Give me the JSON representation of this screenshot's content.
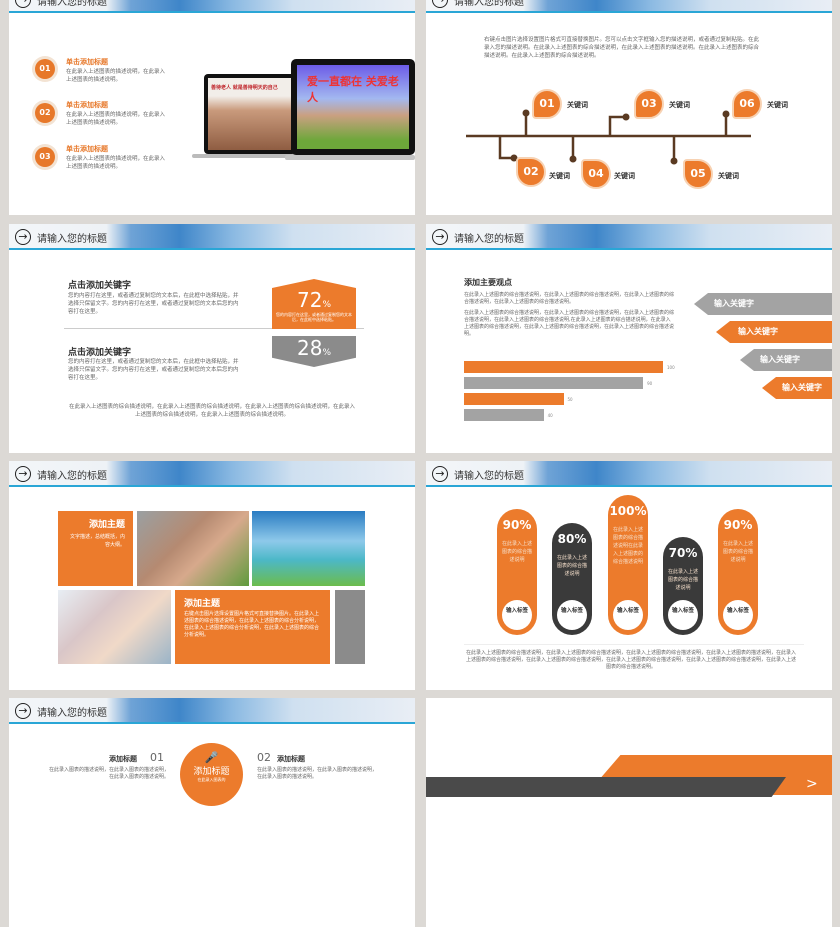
{
  "header_title": "请输入您的标题",
  "slide1": {
    "items": [
      {
        "num": "01",
        "title": "单击添加标题",
        "text": "在此录入上述图表的描述说明，在此录入上述图表的描述说明。"
      },
      {
        "num": "02",
        "title": "单击添加标题",
        "text": "在此录入上述图表的描述说明，在此录入上述图表的描述说明。"
      },
      {
        "num": "03",
        "title": "单击添加标题",
        "text": "在此录入上述图表的描述说明，在此录入上述图表的描述说明。"
      }
    ],
    "screen1": "善待老人 就是善待明天的自己",
    "screen2": "爱一直都在 关爱老人"
  },
  "slide2": {
    "paragraph": "右键点击图片选择设置图片格式可直接替换图片。您可以点击文字框输入您的描述说明，或者通过复制粘贴。在此录入您的描述说明。在此录入上述图表的综合描述说明，在此录入上述图表的描述说明。在此录入上述图表的综合描述说明。在此录入上述图表的综合描述说明。",
    "nodes": [
      {
        "num": "01",
        "label": "关键词"
      },
      {
        "num": "02",
        "label": "关键词"
      },
      {
        "num": "03",
        "label": "关键词"
      },
      {
        "num": "04",
        "label": "关键词"
      },
      {
        "num": "05",
        "label": "关键词"
      },
      {
        "num": "06",
        "label": "关键词"
      }
    ],
    "colors": {
      "accent": "#ec7b2c",
      "line": "#5a3a22"
    }
  },
  "slide3": {
    "blocks": [
      {
        "title": "点击添加关键字",
        "text": "您的内容打在这里，或者通过复制您的文本后，在此框中选择粘贴，并选择只保留文字。您的内容打在这里，或者通过复制您的文本后您的内容打在这里。"
      },
      {
        "title": "点击添加关键字",
        "text": "您的内容打在这里，或者通过复制您的文本后，在此框中选择粘贴，并选择只保留文字。您的内容打在这里，或者通过复制您的文本后您的内容打在这里。"
      }
    ],
    "stat1": {
      "value": "72",
      "unit": "%",
      "text": "您的内容打在这里，或者通过复制您的文本后，在此框中选择粘贴。"
    },
    "stat2": {
      "value": "28",
      "unit": "%"
    },
    "footer": "在此录入上述图表的综合描述说明，在此录入上述图表的综合描述说明，在此录入上述图表的综合描述说明，在此录入上述图表的综合描述说明，在此录入上述图表的综合描述说明。"
  },
  "slide4": {
    "title": "添加主要观点",
    "para1": "在此录入上述图表的综合描述说明，在此录入上述图表的综合描述说明，在此录入上述图表的综合描述说明，在此录入上述图表的综合描述说明。",
    "para2": "在此录入上述图表的综合描述说明，在此录入上述图表的综合描述说明，在此录入上述图表的综合描述说明，在此录入上述图表的综合描述说明,在此录入上述图表的综合描述说明，在此录入上述图表的综合描述说明，在此录入上述图表的综合描述说明，在此录入上述图表的综合描述说明。",
    "bars": [
      {
        "value": 100,
        "label": "100",
        "color": "#ec7b2c"
      },
      {
        "value": 90,
        "label": "90",
        "color": "#a3a3a3"
      },
      {
        "value": 50,
        "label": "50",
        "color": "#ec7b2c"
      },
      {
        "value": 40,
        "label": "40",
        "color": "#a3a3a3"
      }
    ],
    "keywords": [
      "输入关键字",
      "输入关键字",
      "输入关键字",
      "输入关键字"
    ]
  },
  "slide5": {
    "box1": {
      "title": "添加主题",
      "text": "文字描述，总结概括，内容大纲。"
    },
    "box2": {
      "title": "添加主题",
      "text": "右键点击图片选择设置图片格式可直接替换图片。在此录入上述图表的综合描述说明，在此录入上述图表的综合分析说明，在此录入上述图表的综合分析说明，在此录入上述图表的综合分析说明。"
    }
  },
  "slide6": {
    "capsules": [
      {
        "percent": "90%",
        "text": "在此录入上述图表的综合描述说明",
        "label": "输入标签",
        "color": "#ec7b2c",
        "value": 90
      },
      {
        "percent": "80%",
        "text": "在此录入上述图表的综合描述说明",
        "label": "输入标签",
        "color": "#3a3a3a",
        "value": 80
      },
      {
        "percent": "100%",
        "text": "在此录入上述图表的综合描述说明在此录入上述图表的综合描述说明",
        "label": "输入标签",
        "color": "#ec7b2c",
        "value": 100
      },
      {
        "percent": "70%",
        "text": "在此录入上述图表的综合描述说明",
        "label": "输入标签",
        "color": "#3a3a3a",
        "value": 70
      },
      {
        "percent": "90%",
        "text": "在此录入上述图表的综合描述说明",
        "label": "输入标签",
        "color": "#ec7b2c",
        "value": 90
      }
    ],
    "footer": "在此录入上述图表的综合描述说明，在此录入上述图表的综合描述说明，在此录入上述图表的综合描述说明，在此录入上述图表的描述说明，在此录入上述图表的综合描述说明，在此录入上述图表的综合描述说明，在此录入上述图表的综合描述说明，在此录入上述图表的综合描述说明，在此录入上述图表的综合描述说明。"
  },
  "slide7": {
    "left": {
      "title": "添加标题",
      "num": "01",
      "text": "在此录入图表的描述说明，在此录入图表的描述说明，在此录入图表的描述说明。"
    },
    "center": {
      "title": "添加标题",
      "sub": "在此录入图表的"
    },
    "right": {
      "title": "添加标题",
      "num": "02",
      "text": "在此录入图表的描述说明，在此录入图表的描述说明，在此录入图表的描述说明。"
    }
  }
}
